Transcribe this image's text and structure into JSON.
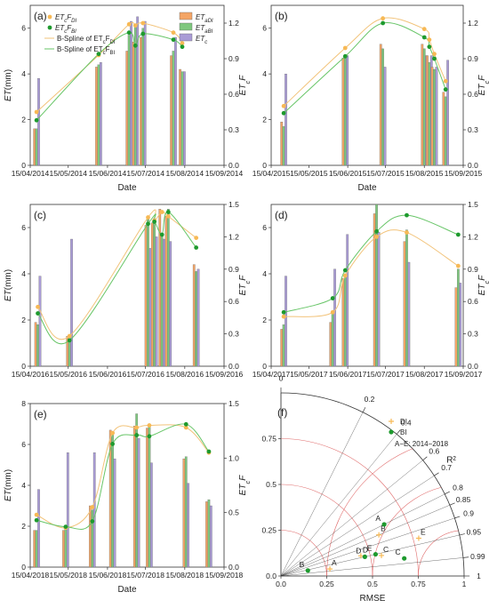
{
  "colors": {
    "di_bar": "#f4a566",
    "bi_bar": "#7ec87e",
    "et_bar": "#a99bd6",
    "di_pt": "#f7b955",
    "bi_pt": "#1e9a2e",
    "di_line": "#f2c37a",
    "bi_line": "#67c567",
    "grid": "#e06b6b"
  },
  "legend": {
    "points": [
      "ETcF_DI",
      "ETcF_BI"
    ],
    "lines": [
      "B-Spline of ETcF_DI",
      "B-Spline of ETcF_BI"
    ],
    "bars": [
      "ETaDI",
      "ETaBI",
      "ETc"
    ]
  },
  "chart_data": [
    {
      "panel": "(a)",
      "type": "bar+scatter+line",
      "xlabel": "Date",
      "ylabel": "ET(mm)",
      "y2label": "ETcF",
      "ylim": [
        0,
        7
      ],
      "y2lim": [
        0,
        1.35
      ],
      "x_ticks": [
        "15/04/2014",
        "15/05/2014",
        "15/06/2014",
        "15/07/2014",
        "15/08/2014",
        "15/09/2014"
      ],
      "y_ticks": [
        "0",
        "2",
        "4",
        "6"
      ],
      "y2_ticks": [
        "0.0",
        "0.3",
        "0.6",
        "0.9",
        "1.2"
      ],
      "bars": [
        {
          "x": "2014-04-20",
          "DI": 1.6,
          "BI": 1.6,
          "ETc": 3.8
        },
        {
          "x": "2014-06-08",
          "DI": 4.3,
          "BI": 4.4,
          "ETc": 4.5
        },
        {
          "x": "2014-07-02",
          "DI": 5.0,
          "BI": 5.7,
          "ETc": 6.3
        },
        {
          "x": "2014-07-07",
          "DI": 5.4,
          "BI": 6.1,
          "ETc": 6.5
        },
        {
          "x": "2014-07-13",
          "DI": 5.6,
          "BI": 6.0,
          "ETc": 6.3
        },
        {
          "x": "2014-08-06",
          "DI": 4.8,
          "BI": 5.0,
          "ETc": 5.6
        },
        {
          "x": "2014-08-13",
          "DI": 4.2,
          "BI": 4.1,
          "ETc": 4.1
        }
      ],
      "DI_points": [
        {
          "x": "2014-04-20",
          "y": 0.45
        },
        {
          "x": "2014-06-08",
          "y": 0.93
        },
        {
          "x": "2014-07-02",
          "y": 1.19
        },
        {
          "x": "2014-07-07",
          "y": 1.18
        },
        {
          "x": "2014-07-13",
          "y": 1.2
        },
        {
          "x": "2014-08-06",
          "y": 1.12
        },
        {
          "x": "2014-08-13",
          "y": 1.03
        }
      ],
      "BI_points": [
        {
          "x": "2014-04-20",
          "y": 0.38
        },
        {
          "x": "2014-06-08",
          "y": 0.94
        },
        {
          "x": "2014-07-02",
          "y": 1.12
        },
        {
          "x": "2014-07-07",
          "y": 1.01
        },
        {
          "x": "2014-07-13",
          "y": 1.11
        },
        {
          "x": "2014-08-06",
          "y": 1.06
        },
        {
          "x": "2014-08-13",
          "y": 1.0
        }
      ]
    },
    {
      "panel": "(b)",
      "type": "bar+scatter+line",
      "xlabel": "Date",
      "ylabel": "",
      "y2label": "ETcF",
      "ylim": [
        0,
        7
      ],
      "y2lim": [
        0,
        1.35
      ],
      "x_ticks": [
        "15/04/2015",
        "15/05/2015",
        "15/06/2015",
        "15/07/2015",
        "15/08/2015",
        "15/09/2015"
      ],
      "y_ticks": [
        "0",
        "2",
        "4",
        "6"
      ],
      "y2_ticks": [
        "0.0",
        "0.3",
        "0.6",
        "0.9",
        "1.2"
      ],
      "bars": [
        {
          "x": "2015-04-25",
          "DI": 1.9,
          "BI": 1.7,
          "ETc": 4.0
        },
        {
          "x": "2015-06-13",
          "DI": 4.7,
          "BI": 4.8,
          "ETc": 4.8
        },
        {
          "x": "2015-07-13",
          "DI": 5.3,
          "BI": 5.1,
          "ETc": 4.3
        },
        {
          "x": "2015-08-15",
          "DI": 5.3,
          "BI": 5.1,
          "ETc": 4.8
        },
        {
          "x": "2015-08-19",
          "DI": 4.8,
          "BI": 4.5,
          "ETc": 4.8
        },
        {
          "x": "2015-08-23",
          "DI": 4.3,
          "BI": 4.2,
          "ETc": 4.3
        },
        {
          "x": "2015-09-01",
          "DI": 3.2,
          "BI": 3.0,
          "ETc": 4.6
        }
      ],
      "DI_points": [
        {
          "x": "2015-04-25",
          "y": 0.5
        },
        {
          "x": "2015-06-13",
          "y": 0.99
        },
        {
          "x": "2015-07-13",
          "y": 1.24
        },
        {
          "x": "2015-08-15",
          "y": 1.15
        },
        {
          "x": "2015-08-19",
          "y": 1.06
        },
        {
          "x": "2015-08-23",
          "y": 0.94
        },
        {
          "x": "2015-09-01",
          "y": 0.71
        }
      ],
      "BI_points": [
        {
          "x": "2015-04-25",
          "y": 0.44
        },
        {
          "x": "2015-06-13",
          "y": 0.92
        },
        {
          "x": "2015-07-13",
          "y": 1.2
        },
        {
          "x": "2015-08-15",
          "y": 1.08
        },
        {
          "x": "2015-08-19",
          "y": 1.0
        },
        {
          "x": "2015-08-23",
          "y": 0.9
        },
        {
          "x": "2015-09-01",
          "y": 0.64
        }
      ]
    },
    {
      "panel": "(c)",
      "type": "bar+scatter+line",
      "xlabel": "",
      "ylabel": "ET(mm)",
      "y2label": "ETcF",
      "ylim": [
        0,
        7
      ],
      "y2lim": [
        0,
        1.5
      ],
      "x_ticks": [
        "15/04/2016",
        "15/05/2016",
        "15/06/2016",
        "15/07/2016",
        "15/08/2016",
        "15/09/2016"
      ],
      "y_ticks": [
        "0",
        "2",
        "4",
        "6"
      ],
      "y2_ticks": [
        "0.0",
        "0.3",
        "0.6",
        "0.9",
        "1.2",
        "1.5"
      ],
      "bars": [
        {
          "x": "2016-04-21",
          "DI": 1.9,
          "BI": 1.8,
          "ETc": 3.9
        },
        {
          "x": "2016-05-16",
          "DI": 1.3,
          "BI": 1.1,
          "ETc": 5.5
        },
        {
          "x": "2016-07-17",
          "DI": 6.1,
          "BI": 6.4,
          "ETc": 5.1
        },
        {
          "x": "2016-07-22",
          "DI": 6.2,
          "BI": 6.4,
          "ETc": 5.6
        },
        {
          "x": "2016-07-28",
          "DI": 6.8,
          "BI": 5.7,
          "ETc": 5.5
        },
        {
          "x": "2016-08-02",
          "DI": 6.5,
          "BI": 6.8,
          "ETc": 5.4
        },
        {
          "x": "2016-08-24",
          "DI": 4.4,
          "BI": 4.1,
          "ETc": 4.2
        }
      ],
      "DI_points": [
        {
          "x": "2016-04-21",
          "y": 0.55
        },
        {
          "x": "2016-05-16",
          "y": 0.28
        },
        {
          "x": "2016-07-17",
          "y": 1.38
        },
        {
          "x": "2016-07-22",
          "y": 1.35
        },
        {
          "x": "2016-07-28",
          "y": 1.43
        },
        {
          "x": "2016-08-02",
          "y": 1.39
        },
        {
          "x": "2016-08-24",
          "y": 1.19
        }
      ],
      "BI_points": [
        {
          "x": "2016-04-21",
          "y": 0.49
        },
        {
          "x": "2016-05-16",
          "y": 0.24
        },
        {
          "x": "2016-07-17",
          "y": 1.32
        },
        {
          "x": "2016-07-22",
          "y": 1.34
        },
        {
          "x": "2016-07-28",
          "y": 1.22
        },
        {
          "x": "2016-08-02",
          "y": 1.43
        },
        {
          "x": "2016-08-24",
          "y": 1.1
        }
      ]
    },
    {
      "panel": "(d)",
      "type": "bar+scatter+line",
      "xlabel": "",
      "ylabel": "",
      "y2label": "ETcF",
      "ylim": [
        0,
        7
      ],
      "y2lim": [
        0,
        1.5
      ],
      "x_ticks": [
        "15/04/2017",
        "15/05/2017",
        "15/06/2017",
        "15/07/2017",
        "15/08/2017",
        "15/09/2017"
      ],
      "y_ticks": [
        "0",
        "2",
        "4",
        "6"
      ],
      "y2_ticks": [
        "0.0",
        "0.3",
        "0.6",
        "0.9",
        "1.2",
        "1.5"
      ],
      "bars": [
        {
          "x": "2017-04-25",
          "DI": 1.6,
          "BI": 1.8,
          "ETc": 3.9
        },
        {
          "x": "2017-06-03",
          "DI": 1.9,
          "BI": 2.3,
          "ETc": 4.2
        },
        {
          "x": "2017-06-13",
          "DI": 3.8,
          "BI": 4.0,
          "ETc": 5.7
        },
        {
          "x": "2017-07-08",
          "DI": 6.6,
          "BI": 7.0,
          "ETc": 5.8
        },
        {
          "x": "2017-08-01",
          "DI": 5.4,
          "BI": 5.9,
          "ETc": 4.5
        },
        {
          "x": "2017-09-11",
          "DI": 3.4,
          "BI": 4.2,
          "ETc": 3.6
        }
      ],
      "DI_points": [
        {
          "x": "2017-04-25",
          "y": 0.46
        },
        {
          "x": "2017-06-03",
          "y": 0.5
        },
        {
          "x": "2017-06-13",
          "y": 0.84
        },
        {
          "x": "2017-07-08",
          "y": 1.2
        },
        {
          "x": "2017-08-01",
          "y": 1.24
        },
        {
          "x": "2017-09-11",
          "y": 0.93
        }
      ],
      "BI_points": [
        {
          "x": "2017-04-25",
          "y": 0.5
        },
        {
          "x": "2017-06-03",
          "y": 0.63
        },
        {
          "x": "2017-06-13",
          "y": 0.89
        },
        {
          "x": "2017-07-08",
          "y": 1.25
        },
        {
          "x": "2017-08-01",
          "y": 1.4
        },
        {
          "x": "2017-09-11",
          "y": 1.22
        }
      ]
    },
    {
      "panel": "(e)",
      "type": "bar+scatter+line",
      "xlabel": "Date",
      "ylabel": "ET(mm)",
      "y2label": "ETcF",
      "ylim": [
        0,
        8
      ],
      "y2lim": [
        0,
        1.5
      ],
      "x_ticks": [
        "15/04/2018",
        "15/05/2018",
        "15/06/2018",
        "15/07/2018",
        "15/08/2018",
        "15/09/2018"
      ],
      "y_ticks": [
        "0",
        "2",
        "4",
        "6",
        "8"
      ],
      "y2_ticks": [
        "0.0",
        "0.5",
        "1.0",
        "1.5"
      ],
      "bars": [
        {
          "x": "2018-04-20",
          "DI": 1.8,
          "BI": 1.8,
          "ETc": 3.8
        },
        {
          "x": "2018-05-13",
          "DI": 1.8,
          "BI": 1.9,
          "ETc": 5.6
        },
        {
          "x": "2018-06-03",
          "DI": 3.0,
          "BI": 2.8,
          "ETc": 5.6
        },
        {
          "x": "2018-06-19",
          "DI": 6.7,
          "BI": 6.6,
          "ETc": 5.3
        },
        {
          "x": "2018-07-08",
          "DI": 6.9,
          "BI": 7.5,
          "ETc": 6.3
        },
        {
          "x": "2018-07-18",
          "DI": 6.8,
          "BI": 7.0,
          "ETc": 5.1
        },
        {
          "x": "2018-08-16",
          "DI": 5.3,
          "BI": 5.4,
          "ETc": 4.1
        },
        {
          "x": "2018-09-03",
          "DI": 3.2,
          "BI": 3.3,
          "ETc": 3.0
        }
      ],
      "DI_points": [
        {
          "x": "2018-04-20",
          "y": 0.48
        },
        {
          "x": "2018-05-13",
          "y": 0.36
        },
        {
          "x": "2018-06-03",
          "y": 0.55
        },
        {
          "x": "2018-06-19",
          "y": 1.23
        },
        {
          "x": "2018-07-08",
          "y": 1.28
        },
        {
          "x": "2018-07-18",
          "y": 1.3
        },
        {
          "x": "2018-08-16",
          "y": 1.28
        },
        {
          "x": "2018-09-03",
          "y": 1.05
        }
      ],
      "BI_points": [
        {
          "x": "2018-04-20",
          "y": 0.43
        },
        {
          "x": "2018-05-13",
          "y": 0.37
        },
        {
          "x": "2018-06-03",
          "y": 0.42
        },
        {
          "x": "2018-06-19",
          "y": 1.13
        },
        {
          "x": "2018-07-08",
          "y": 1.21
        },
        {
          "x": "2018-07-18",
          "y": 1.2
        },
        {
          "x": "2018-08-16",
          "y": 1.31
        },
        {
          "x": "2018-09-03",
          "y": 1.06
        }
      ]
    },
    {
      "panel": "(f)",
      "type": "taylor",
      "xlabel": "RMSE",
      "ylabel": "",
      "rlabel": "R²",
      "radial_ticks": [
        "0.0",
        "0.25",
        "0.5",
        "0.75",
        "1"
      ],
      "axis_ticks": [
        "0.0",
        "0.25",
        "0.5",
        "0.75"
      ],
      "angular_ticks": [
        "0",
        "0.2",
        "0.4",
        "0.6",
        "0.7",
        "0.8",
        "0.85",
        "0.9",
        "0.95",
        "0.99",
        "1"
      ],
      "rmse_circles": [
        0.25,
        0.5,
        0.75
      ],
      "legend": [
        "DI",
        "BI"
      ],
      "note": "A−E: 2014−2018",
      "DI": [
        {
          "label": "A",
          "std": 0.27,
          "r2": 0.98
        },
        {
          "label": "B",
          "std": 0.58,
          "r2": 0.85
        },
        {
          "label": "C",
          "std": 0.56,
          "r2": 0.96
        },
        {
          "label": "D",
          "std": 0.45,
          "r2": 0.94
        },
        {
          "label": "E",
          "std": 0.78,
          "r2": 0.93
        }
      ],
      "BI": [
        {
          "label": "A",
          "std": 0.63,
          "r2": 0.8
        },
        {
          "label": "B",
          "std": 0.15,
          "r2": 0.96
        },
        {
          "label": "C",
          "std": 0.68,
          "r2": 0.98
        },
        {
          "label": "D",
          "std": 0.47,
          "r2": 0.95
        },
        {
          "label": "E",
          "std": 0.53,
          "r2": 0.95
        }
      ]
    }
  ]
}
